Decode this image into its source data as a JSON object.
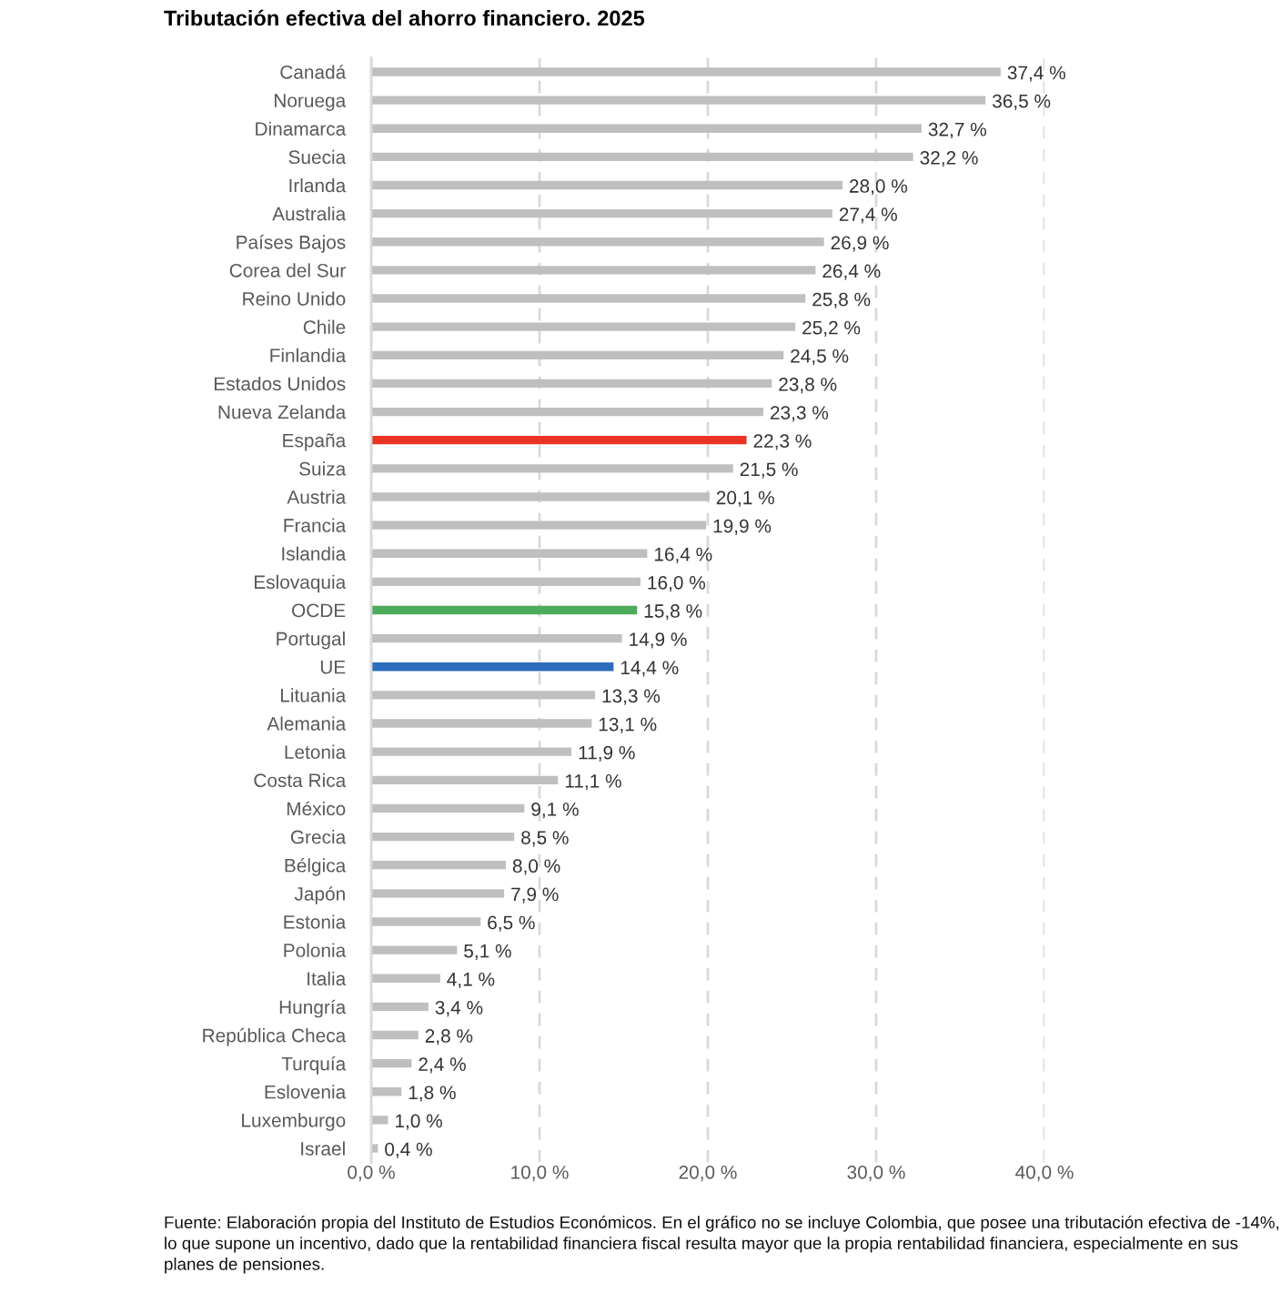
{
  "chart_data": {
    "type": "bar",
    "orientation": "horizontal",
    "title": "Tributación efectiva del ahorro financiero. 2025",
    "categories": [
      "Canadá",
      "Noruega",
      "Dinamarca",
      "Suecia",
      "Irlanda",
      "Australia",
      "Países Bajos",
      "Corea del Sur",
      "Reino Unido",
      "Chile",
      "Finlandia",
      "Estados Unidos",
      "Nueva Zelanda",
      "España",
      "Suiza",
      "Austria",
      "Francia",
      "Islandia",
      "Eslovaquia",
      "OCDE",
      "Portugal",
      "UE",
      "Lituania",
      "Alemania",
      "Letonia",
      "Costa Rica",
      "México",
      "Grecia",
      "Bélgica",
      "Japón",
      "Estonia",
      "Polonia",
      "Italia",
      "Hungría",
      "República Checa",
      "Turquía",
      "Eslovenia",
      "Luxemburgo",
      "Israel"
    ],
    "values": [
      37.4,
      36.5,
      32.7,
      32.2,
      28.0,
      27.4,
      26.9,
      26.4,
      25.8,
      25.2,
      24.5,
      23.8,
      23.3,
      22.3,
      21.5,
      20.1,
      19.9,
      16.4,
      16.0,
      15.8,
      14.9,
      14.4,
      13.3,
      13.1,
      11.9,
      11.1,
      9.1,
      8.5,
      8.0,
      7.9,
      6.5,
      5.1,
      4.1,
      3.4,
      2.8,
      2.4,
      1.8,
      1.0,
      0.4
    ],
    "value_labels": [
      "37,4 %",
      "36,5 %",
      "32,7 %",
      "32,2 %",
      "28,0 %",
      "27,4 %",
      "26,9 %",
      "26,4 %",
      "25,8 %",
      "25,2 %",
      "24,5 %",
      "23,8 %",
      "23,3 %",
      "22,3 %",
      "21,5 %",
      "20,1 %",
      "19,9 %",
      "16,4 %",
      "16,0 %",
      "15,8 %",
      "14,9 %",
      "14,4 %",
      "13,3 %",
      "13,1 %",
      "11,9 %",
      "11,1 %",
      "9,1 %",
      "8,5 %",
      "8,0 %",
      "7,9 %",
      "6,5 %",
      "5,1 %",
      "4,1 %",
      "3,4 %",
      "2,8 %",
      "2,4 %",
      "1,8 %",
      "1,0 %",
      "0,4 %"
    ],
    "colors": [
      "#bfbfbf",
      "#bfbfbf",
      "#bfbfbf",
      "#bfbfbf",
      "#bfbfbf",
      "#bfbfbf",
      "#bfbfbf",
      "#bfbfbf",
      "#bfbfbf",
      "#bfbfbf",
      "#bfbfbf",
      "#bfbfbf",
      "#bfbfbf",
      "#e93323",
      "#bfbfbf",
      "#bfbfbf",
      "#bfbfbf",
      "#bfbfbf",
      "#bfbfbf",
      "#4dac5b",
      "#bfbfbf",
      "#2e6dbd",
      "#bfbfbf",
      "#bfbfbf",
      "#bfbfbf",
      "#bfbfbf",
      "#bfbfbf",
      "#bfbfbf",
      "#bfbfbf",
      "#bfbfbf",
      "#bfbfbf",
      "#bfbfbf",
      "#bfbfbf",
      "#bfbfbf",
      "#bfbfbf",
      "#bfbfbf",
      "#bfbfbf",
      "#bfbfbf",
      "#bfbfbf"
    ],
    "xlim": [
      0,
      40
    ],
    "xticks": [
      {
        "value": 0,
        "label": "0,0 %"
      },
      {
        "value": 10,
        "label": "10,0 %"
      },
      {
        "value": 20,
        "label": "20,0 %"
      },
      {
        "value": 30,
        "label": "30,0 %"
      },
      {
        "value": 40,
        "label": "40,0 %"
      }
    ],
    "grid": "x",
    "annotations": [
      "Fuente: Elaboración propia del Instituto de Estudios Económicos. En el gráfico no se incluye Colombia, que posee una tributación efectiva de -14%, lo que supone un incentivo, dado que la rentabilidad financiera fiscal resulta mayor que la propia rentabilidad financiera, especialmente en sus planes de pensiones."
    ]
  }
}
